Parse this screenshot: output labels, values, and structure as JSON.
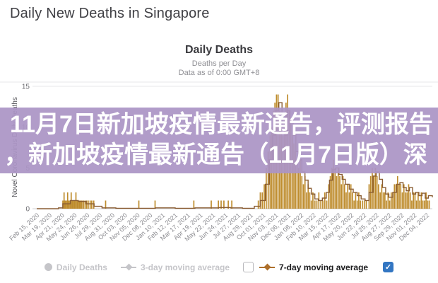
{
  "page": {
    "title": "Daily New Deaths in Singapore"
  },
  "overlay": {
    "line1": "11月7日新加坡疫情最新通告，评测报告",
    "line2": "，新加坡疫情最新通告（11月7日版）深",
    "bg_color": "#ab94c5",
    "text_color": "#ffffff"
  },
  "chart_data": {
    "type": "bar",
    "title": "Daily Deaths",
    "subtitle": "Deaths per Day",
    "data_as_of": "Data as of 0:00 GMT+8",
    "ylabel": "Novel Coronavirus Daily Deaths",
    "ylim": [
      0,
      15
    ],
    "yticks": [
      0,
      5,
      10,
      15
    ],
    "grid": true,
    "x_tick_labels": [
      "Feb 15, 2020",
      "Mar 19, 2020",
      "Apr 21, 2020",
      "May 24, 2020",
      "Jun 26, 2020",
      "Jul 29, 2020",
      "Aug 31, 2020",
      "Oct 03, 2020",
      "Nov 05, 2020",
      "Dec 08, 2020",
      "Jan 10, 2021",
      "Feb 12, 2021",
      "Mar 17, 2021",
      "Apr 19, 2021",
      "May 22, 2021",
      "Jun 24, 2021",
      "Jul 27, 2021",
      "Aug 29, 2021",
      "Oct 01, 2021",
      "Nov 03, 2021",
      "Dec 06, 2021",
      "Jan 08, 2022",
      "Feb 10, 2022",
      "Mar 15, 2022",
      "Apr 17, 2022",
      "May 20, 2022",
      "Jun 22, 2022",
      "Jul 25, 2022",
      "Aug 27, 2022",
      "Sep 29, 2022",
      "Nov 01, 2022",
      "Dec 04, 2022"
    ],
    "series": [
      {
        "name": "Daily Deaths",
        "type": "bar",
        "color": "#be8c2d",
        "points": [
          [
            0.066,
            1
          ],
          [
            0.069,
            2
          ],
          [
            0.072,
            1
          ],
          [
            0.075,
            1
          ],
          [
            0.078,
            2
          ],
          [
            0.081,
            1
          ],
          [
            0.084,
            1
          ],
          [
            0.087,
            2
          ],
          [
            0.09,
            1
          ],
          [
            0.093,
            1
          ],
          [
            0.096,
            1
          ],
          [
            0.099,
            2
          ],
          [
            0.102,
            1
          ],
          [
            0.105,
            1
          ],
          [
            0.108,
            1
          ],
          [
            0.111,
            1
          ],
          [
            0.114,
            1
          ],
          [
            0.118,
            1
          ],
          [
            0.122,
            1
          ],
          [
            0.126,
            1
          ],
          [
            0.13,
            1
          ],
          [
            0.135,
            1
          ],
          [
            0.139,
            1
          ],
          [
            0.144,
            1
          ],
          [
            0.174,
            1
          ],
          [
            0.258,
            1
          ],
          [
            0.299,
            1
          ],
          [
            0.397,
            1
          ],
          [
            0.441,
            1
          ],
          [
            0.459,
            1
          ],
          [
            0.466,
            1
          ],
          [
            0.473,
            1
          ],
          [
            0.484,
            1
          ],
          [
            0.493,
            1
          ],
          [
            0.56,
            1
          ],
          [
            0.565,
            2
          ],
          [
            0.57,
            2
          ],
          [
            0.575,
            3
          ],
          [
            0.58,
            5
          ],
          [
            0.585,
            7
          ],
          [
            0.59,
            9
          ],
          [
            0.594,
            10
          ],
          [
            0.598,
            12
          ],
          [
            0.602,
            13
          ],
          [
            0.606,
            14
          ],
          [
            0.61,
            14
          ],
          [
            0.614,
            12
          ],
          [
            0.618,
            10
          ],
          [
            0.622,
            9
          ],
          [
            0.626,
            11
          ],
          [
            0.63,
            13
          ],
          [
            0.634,
            14
          ],
          [
            0.638,
            12
          ],
          [
            0.642,
            11
          ],
          [
            0.646,
            9
          ],
          [
            0.65,
            8
          ],
          [
            0.654,
            7
          ],
          [
            0.658,
            6
          ],
          [
            0.662,
            5
          ],
          [
            0.666,
            6
          ],
          [
            0.67,
            4
          ],
          [
            0.674,
            3
          ],
          [
            0.678,
            4
          ],
          [
            0.682,
            2
          ],
          [
            0.686,
            3
          ],
          [
            0.69,
            2
          ],
          [
            0.694,
            1
          ],
          [
            0.698,
            2
          ],
          [
            0.703,
            1
          ],
          [
            0.708,
            1
          ],
          [
            0.713,
            2
          ],
          [
            0.718,
            1
          ],
          [
            0.723,
            1
          ],
          [
            0.728,
            2
          ],
          [
            0.733,
            1
          ],
          [
            0.738,
            3
          ],
          [
            0.742,
            4
          ],
          [
            0.746,
            5
          ],
          [
            0.75,
            6
          ],
          [
            0.754,
            5
          ],
          [
            0.758,
            4
          ],
          [
            0.762,
            5
          ],
          [
            0.766,
            4
          ],
          [
            0.77,
            3
          ],
          [
            0.774,
            4
          ],
          [
            0.778,
            3
          ],
          [
            0.782,
            2
          ],
          [
            0.786,
            3
          ],
          [
            0.79,
            2
          ],
          [
            0.794,
            3
          ],
          [
            0.798,
            2
          ],
          [
            0.802,
            1
          ],
          [
            0.806,
            2
          ],
          [
            0.81,
            1
          ],
          [
            0.814,
            2
          ],
          [
            0.818,
            1
          ],
          [
            0.823,
            1
          ],
          [
            0.828,
            1
          ],
          [
            0.833,
            1
          ],
          [
            0.84,
            3
          ],
          [
            0.844,
            4
          ],
          [
            0.848,
            5
          ],
          [
            0.852,
            4
          ],
          [
            0.856,
            5
          ],
          [
            0.86,
            4
          ],
          [
            0.864,
            3
          ],
          [
            0.868,
            2
          ],
          [
            0.872,
            3
          ],
          [
            0.876,
            2
          ],
          [
            0.88,
            2
          ],
          [
            0.884,
            1
          ],
          [
            0.888,
            2
          ],
          [
            0.892,
            1
          ],
          [
            0.896,
            2
          ],
          [
            0.9,
            2
          ],
          [
            0.904,
            3
          ],
          [
            0.908,
            3
          ],
          [
            0.912,
            4
          ],
          [
            0.916,
            3
          ],
          [
            0.92,
            3
          ],
          [
            0.924,
            2
          ],
          [
            0.928,
            3
          ],
          [
            0.932,
            2
          ],
          [
            0.936,
            2
          ],
          [
            0.94,
            3
          ],
          [
            0.944,
            2
          ],
          [
            0.948,
            1
          ],
          [
            0.952,
            2
          ],
          [
            0.956,
            2
          ],
          [
            0.96,
            1
          ],
          [
            0.964,
            2
          ],
          [
            0.968,
            1
          ],
          [
            0.972,
            2
          ],
          [
            0.976,
            1
          ],
          [
            0.98,
            1
          ],
          [
            0.984,
            2
          ],
          [
            0.988,
            1
          ],
          [
            0.992,
            1
          ]
        ]
      },
      {
        "name": "7-day moving average",
        "type": "step",
        "color": "#8a5d33",
        "points": [
          [
            0,
            0
          ],
          [
            0.055,
            0.1
          ],
          [
            0.066,
            0.6
          ],
          [
            0.085,
            1.0
          ],
          [
            0.105,
            0.9
          ],
          [
            0.125,
            0.6
          ],
          [
            0.145,
            0.3
          ],
          [
            0.165,
            0.1
          ],
          [
            0.2,
            0.05
          ],
          [
            0.3,
            0.1
          ],
          [
            0.35,
            0.05
          ],
          [
            0.4,
            0.1
          ],
          [
            0.46,
            0.15
          ],
          [
            0.49,
            0.1
          ],
          [
            0.52,
            0.05
          ],
          [
            0.55,
            0.3
          ],
          [
            0.565,
            1
          ],
          [
            0.578,
            3
          ],
          [
            0.588,
            6
          ],
          [
            0.596,
            9
          ],
          [
            0.604,
            12
          ],
          [
            0.612,
            13
          ],
          [
            0.62,
            10
          ],
          [
            0.627,
            9
          ],
          [
            0.633,
            12
          ],
          [
            0.64,
            11
          ],
          [
            0.648,
            9
          ],
          [
            0.655,
            7
          ],
          [
            0.662,
            6
          ],
          [
            0.67,
            4.5
          ],
          [
            0.678,
            3.5
          ],
          [
            0.686,
            2.5
          ],
          [
            0.694,
            1.8
          ],
          [
            0.703,
            1.2
          ],
          [
            0.712,
            1
          ],
          [
            0.722,
            1.3
          ],
          [
            0.732,
            2
          ],
          [
            0.74,
            3.5
          ],
          [
            0.748,
            4.8
          ],
          [
            0.756,
            5
          ],
          [
            0.764,
            4.2
          ],
          [
            0.772,
            3.6
          ],
          [
            0.78,
            3
          ],
          [
            0.79,
            2.4
          ],
          [
            0.8,
            2
          ],
          [
            0.81,
            1.6
          ],
          [
            0.82,
            1.2
          ],
          [
            0.83,
            1
          ],
          [
            0.84,
            2
          ],
          [
            0.85,
            4
          ],
          [
            0.858,
            4.5
          ],
          [
            0.866,
            3.6
          ],
          [
            0.874,
            2.6
          ],
          [
            0.882,
            1.8
          ],
          [
            0.89,
            1.4
          ],
          [
            0.9,
            2
          ],
          [
            0.91,
            3
          ],
          [
            0.918,
            3.2
          ],
          [
            0.926,
            2.6
          ],
          [
            0.934,
            2.2
          ],
          [
            0.942,
            2.6
          ],
          [
            0.95,
            1.8
          ],
          [
            0.958,
            2
          ],
          [
            0.966,
            1.6
          ],
          [
            0.974,
            1.9
          ],
          [
            0.982,
            1.3
          ],
          [
            0.99,
            1.6
          ],
          [
            1.0,
            1.4
          ]
        ]
      }
    ],
    "legend": {
      "position": "bottom",
      "items": [
        {
          "label": "Daily Deaths",
          "marker": "circle",
          "color": "#c5c5c9",
          "state": "disabled"
        },
        {
          "label": "3-day moving average",
          "marker": "line-diamond",
          "color": "#c5c5c9",
          "state": "disabled"
        },
        {
          "label": "7-day moving average",
          "marker": "line-diamond",
          "color": "#ad6f2b",
          "state": "active"
        }
      ],
      "checkbox_unchecked": {
        "checked": false
      },
      "checkbox_checked": {
        "checked": true,
        "color": "#3376c2",
        "check_glyph": "✓"
      }
    }
  }
}
